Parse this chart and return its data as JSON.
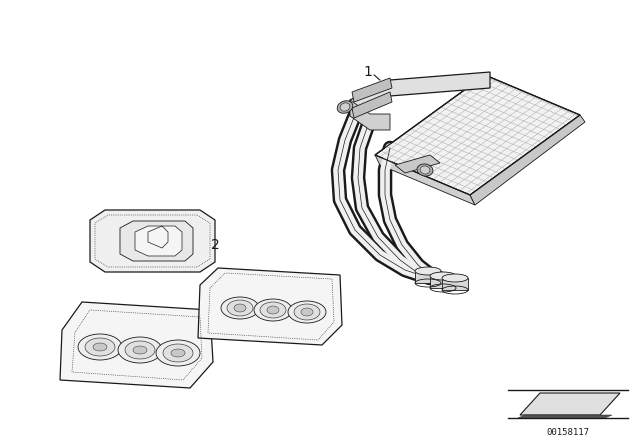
{
  "background_color": "#ffffff",
  "line_color": "#1a1a1a",
  "part_number_label": "00158117",
  "label_1": "1",
  "label_2": "2",
  "fig_width": 6.4,
  "fig_height": 4.48,
  "dpi": 100
}
